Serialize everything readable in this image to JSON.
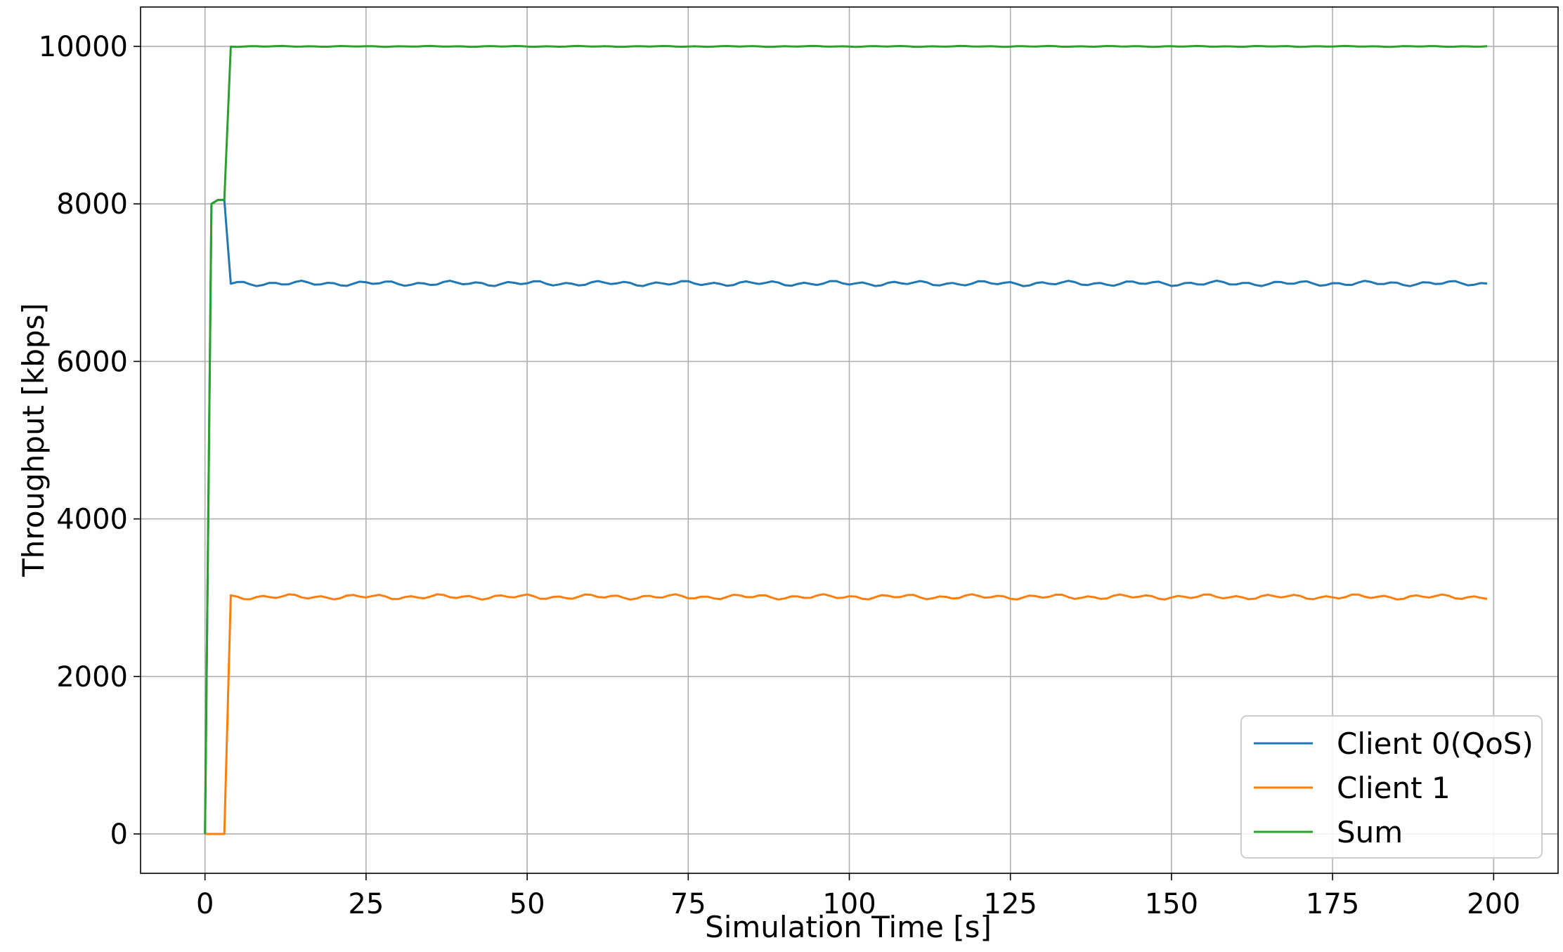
{
  "chart_data": {
    "type": "line",
    "title": "",
    "xlabel": "Simulation Time [s]",
    "ylabel": "Throughput [kbps]",
    "xlim": [
      -10,
      210
    ],
    "ylim": [
      -500,
      10500
    ],
    "xticks": [
      0,
      25,
      50,
      75,
      100,
      125,
      150,
      175,
      200
    ],
    "yticks": [
      0,
      2000,
      4000,
      6000,
      8000,
      10000
    ],
    "xtick_labels": [
      "0",
      "25",
      "50",
      "75",
      "100",
      "125",
      "150",
      "175",
      "200"
    ],
    "ytick_labels": [
      "0",
      "2000",
      "4000",
      "6000",
      "8000",
      "10000"
    ],
    "grid": true,
    "legend_position": "lower-right",
    "series": [
      {
        "name": "Client 0(QoS)",
        "color": "#1f77b4",
        "startup": [
          [
            0,
            0
          ],
          [
            1,
            8000
          ],
          [
            2,
            8050
          ],
          [
            3,
            8050
          ]
        ],
        "steady_from": 4,
        "steady_to": 199,
        "steady_mean": 6990,
        "steady_amp": 35
      },
      {
        "name": "Client 1",
        "color": "#ff7f0e",
        "startup": [
          [
            0,
            0
          ],
          [
            1,
            0
          ],
          [
            2,
            0
          ],
          [
            3,
            0
          ]
        ],
        "steady_from": 4,
        "steady_to": 199,
        "steady_mean": 3010,
        "steady_amp": 35
      },
      {
        "name": "Sum",
        "color": "#2ca02c",
        "startup": [
          [
            0,
            0
          ],
          [
            1,
            8000
          ],
          [
            2,
            8050
          ],
          [
            3,
            8050
          ]
        ],
        "steady_from": 4,
        "steady_to": 199,
        "steady_mean": 10000,
        "steady_amp": 6
      }
    ]
  }
}
